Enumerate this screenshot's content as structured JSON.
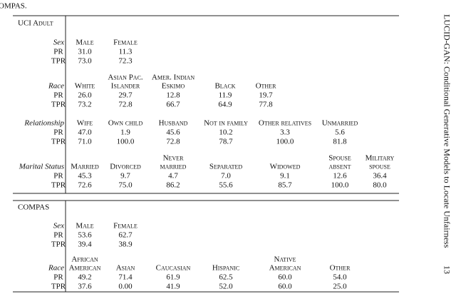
{
  "top_text": "OMPAS.",
  "side_text": "LUCID-GAN: Conditional Generative Models to Locate Unfairness",
  "page_number": "13",
  "sections": [
    {
      "title": "UCI Adult",
      "groups": [
        {
          "attribute": "Sex",
          "headers": [
            [
              "Male"
            ],
            [
              "Female"
            ]
          ],
          "rows": [
            {
              "label": "PR",
              "values": [
                "31.0",
                "11.3"
              ]
            },
            {
              "label": "TPR",
              "values": [
                "73.0",
                "72.3"
              ]
            }
          ]
        },
        {
          "attribute": "Race",
          "headers": [
            [
              "White"
            ],
            [
              "Asian Pac.",
              "Islander"
            ],
            [
              "Amer. Indian",
              "Eskimo"
            ],
            [
              "Black"
            ],
            [
              "Other"
            ]
          ],
          "rows": [
            {
              "label": "PR",
              "values": [
                "26.0",
                "29.7",
                "12.8",
                "11.9",
                "19.7"
              ]
            },
            {
              "label": "TPR",
              "values": [
                "73.2",
                "72.8",
                "66.7",
                "64.9",
                "77.8"
              ]
            }
          ]
        },
        {
          "attribute": "Relationship",
          "headers": [
            [
              "Wife"
            ],
            [
              "Own child"
            ],
            [
              "Husband"
            ],
            [
              "Not in family"
            ],
            [
              "Other relatives"
            ],
            [
              "Unmarried"
            ]
          ],
          "rows": [
            {
              "label": "PR",
              "values": [
                "47.0",
                "1.9",
                "45.6",
                "10.2",
                "3.3",
                "5.6"
              ]
            },
            {
              "label": "TPR",
              "values": [
                "71.0",
                "100.0",
                "72.8",
                "78.7",
                "100.0",
                "81.8"
              ]
            }
          ]
        },
        {
          "attribute": "Marital Status",
          "headers": [
            [
              "Married"
            ],
            [
              "Divorced"
            ],
            [
              "Never",
              "married"
            ],
            [
              "Separated"
            ],
            [
              "Widowed"
            ],
            [
              "Spouse",
              "absent"
            ],
            [
              "Military",
              "spouse"
            ]
          ],
          "rows": [
            {
              "label": "PR",
              "values": [
                "45.3",
                "9.7",
                "4.7",
                "7.0",
                "9.1",
                "12.6",
                "36.4"
              ]
            },
            {
              "label": "TPR",
              "values": [
                "72.6",
                "75.0",
                "86.2",
                "55.6",
                "85.7",
                "100.0",
                "80.0"
              ]
            }
          ]
        }
      ]
    },
    {
      "title": "COMPAS",
      "groups": [
        {
          "attribute": "Sex",
          "headers": [
            [
              "Male"
            ],
            [
              "Female"
            ]
          ],
          "rows": [
            {
              "label": "PR",
              "values": [
                "53.6",
                "62.7"
              ]
            },
            {
              "label": "TPR",
              "values": [
                "39.4",
                "38.9"
              ]
            }
          ]
        },
        {
          "attribute": "Race",
          "headers": [
            [
              "African",
              "American"
            ],
            [
              "Asian"
            ],
            [
              "Caucasian"
            ],
            [
              "Hispanic"
            ],
            [
              "Native",
              "American"
            ],
            [
              "Other"
            ]
          ],
          "rows": [
            {
              "label": "PR",
              "values": [
                "49.2",
                "71.4",
                "61.9",
                "62.5",
                "60.0",
                "54.0"
              ]
            },
            {
              "label": "TPR",
              "values": [
                "37.6",
                "0.00",
                "41.9",
                "52.0",
                "60.0",
                "25.0"
              ]
            }
          ]
        }
      ]
    }
  ]
}
